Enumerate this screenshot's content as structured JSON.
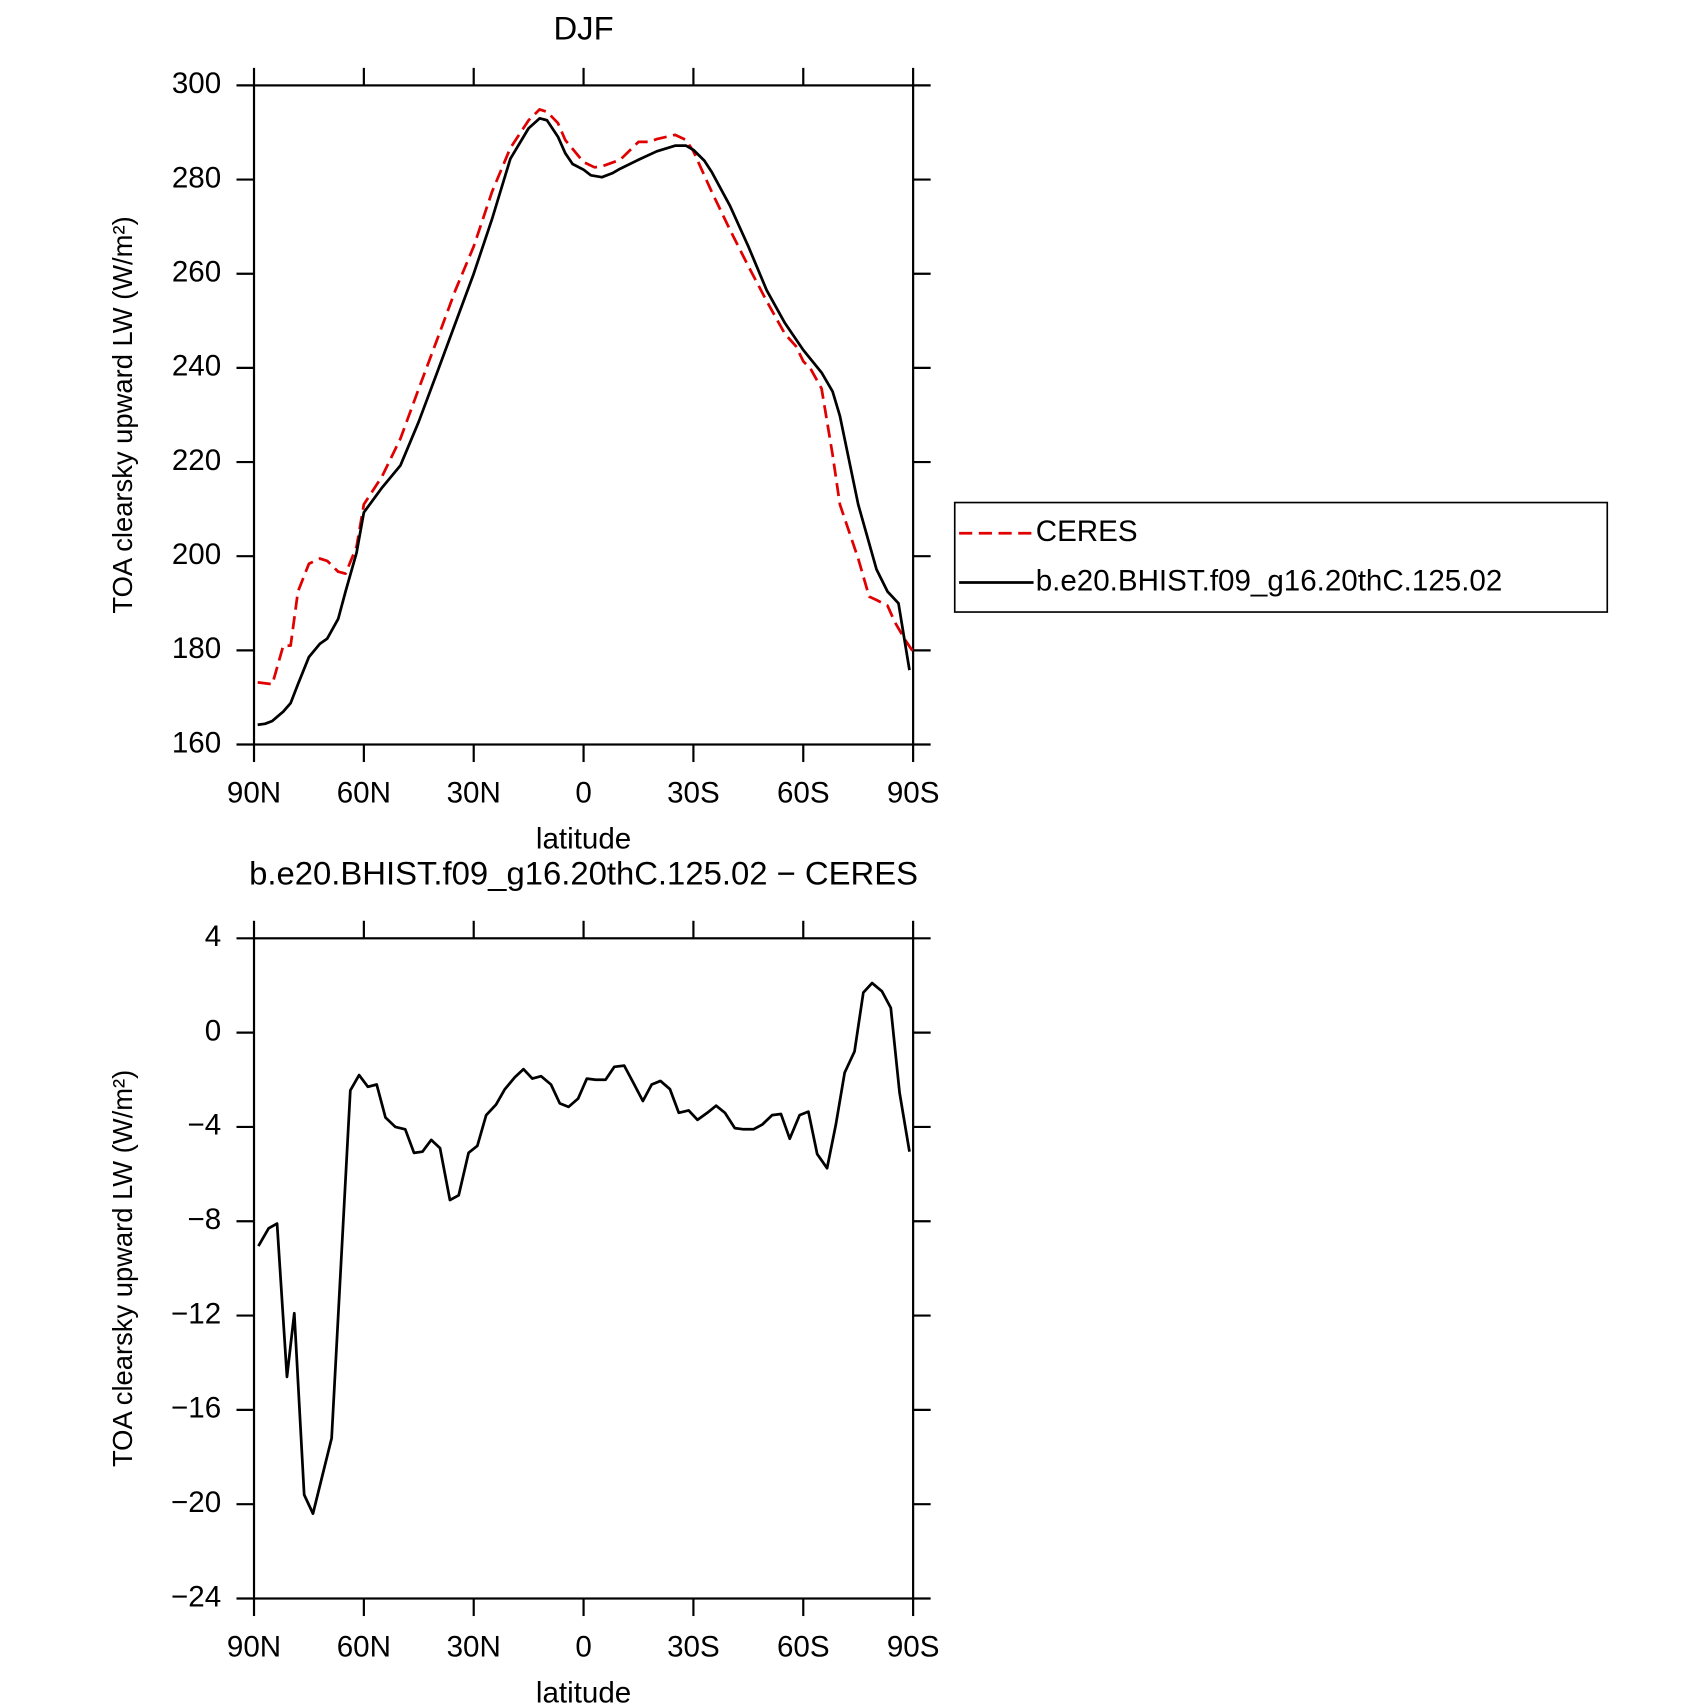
{
  "chart_data": [
    {
      "type": "line",
      "title": "DJF",
      "xlabel": "latitude",
      "ylabel": "TOA clearsky upward LW (W/m²)",
      "xlim": [
        90,
        -90
      ],
      "xticks": [
        {
          "value": 90,
          "label": "90N"
        },
        {
          "value": 60,
          "label": "60N"
        },
        {
          "value": 30,
          "label": "30N"
        },
        0,
        {
          "value": -30,
          "label": "30S"
        },
        {
          "value": -60,
          "label": "60S"
        },
        {
          "value": -90,
          "label": "90S"
        }
      ],
      "ylim": [
        160,
        300
      ],
      "yticks": [
        160,
        180,
        200,
        220,
        240,
        260,
        280,
        300
      ],
      "legend": "right",
      "series": [
        {
          "name": "CERES",
          "color": "#e00000",
          "dash": true,
          "x": [
            89,
            85,
            82,
            80,
            78,
            75,
            72,
            70,
            67,
            65,
            62,
            60,
            55,
            50,
            45,
            40,
            35,
            30,
            25,
            20,
            15,
            12,
            10,
            7,
            5,
            0,
            -3,
            -5,
            -10,
            -15,
            -18,
            -20,
            -25,
            -28,
            -30,
            -35,
            -40,
            -45,
            -50,
            -55,
            -58,
            -60,
            -62,
            -65,
            -68,
            -70,
            -75,
            -78,
            -80,
            -83,
            -85,
            -88,
            -90
          ],
          "values": [
            173.2,
            172.8,
            181,
            181,
            192.5,
            198.4,
            199.5,
            199,
            196.7,
            196.3,
            202,
            211,
            217,
            225,
            235.6,
            246,
            256.5,
            265.8,
            277.4,
            286.7,
            292.6,
            294.9,
            294.4,
            292,
            288.4,
            283.7,
            282.6,
            282.8,
            284.2,
            288,
            288,
            288.6,
            289.5,
            288.4,
            286,
            277.4,
            269.3,
            261.6,
            254.2,
            247.2,
            244.6,
            241.4,
            239.8,
            235.6,
            221.6,
            211,
            199.5,
            191.4,
            190.7,
            189.5,
            186,
            182,
            179.7
          ]
        },
        {
          "name": "b.e20.BHIST.f09_g16.20thC.125.02",
          "color": "#000000",
          "dash": false,
          "x": [
            89,
            87,
            85,
            82,
            80,
            78,
            75,
            72,
            70,
            67,
            65,
            62,
            60,
            55,
            50,
            45,
            40,
            35,
            30,
            25,
            20,
            15,
            12,
            10,
            7,
            5,
            3,
            0,
            -2,
            -5,
            -8,
            -10,
            -15,
            -20,
            -25,
            -28,
            -30,
            -33,
            -35,
            -40,
            -45,
            -50,
            -55,
            -60,
            -65,
            -68,
            -70,
            -75,
            -80,
            -83,
            -86,
            -89
          ],
          "values": [
            164.2,
            164.4,
            165,
            167,
            168.8,
            172.8,
            178.6,
            181.4,
            182.5,
            186.7,
            192.5,
            200.7,
            209.3,
            214.6,
            219.3,
            228.6,
            239,
            249.5,
            260,
            271.6,
            284.4,
            290.9,
            293,
            292.6,
            289.1,
            285.6,
            283.3,
            282.1,
            280.9,
            280.5,
            281.4,
            282.3,
            284.2,
            286,
            287.2,
            287.2,
            286.3,
            284,
            281.6,
            274.4,
            265.8,
            256.5,
            249.5,
            243.8,
            239,
            235,
            229.8,
            211,
            197.2,
            192.5,
            190,
            175.8
          ]
        }
      ]
    },
    {
      "type": "line",
      "title": "b.e20.BHIST.f09_g16.20thC.125.02 − CERES",
      "xlabel": "latitude",
      "ylabel": "TOA clearsky upward LW (W/m²)",
      "xlim": [
        90,
        -90
      ],
      "xticks": [
        {
          "value": 90,
          "label": "90N"
        },
        {
          "value": 60,
          "label": "60N"
        },
        {
          "value": 30,
          "label": "30N"
        },
        0,
        {
          "value": -30,
          "label": "30S"
        },
        {
          "value": -60,
          "label": "60S"
        },
        {
          "value": -90,
          "label": "90S"
        }
      ],
      "ylim": [
        -24,
        4
      ],
      "yticks": [
        {
          "value": -24,
          "label": "−24"
        },
        {
          "value": -20,
          "label": "−20"
        },
        {
          "value": -16,
          "label": "−16"
        },
        {
          "value": -12,
          "label": "−12"
        },
        {
          "value": -8,
          "label": "−8"
        },
        {
          "value": -4,
          "label": "−4"
        },
        0,
        4
      ],
      "series": [
        {
          "color": "#000000",
          "dash": false,
          "x": [
            88.8,
            86,
            83.7,
            81,
            79,
            76.3,
            73.9,
            68.8,
            63.7,
            61.3,
            58.9,
            56.5,
            54.1,
            51.4,
            48.7,
            46.3,
            44,
            41.6,
            39.2,
            36.5,
            34.1,
            31.4,
            29,
            26.6,
            23.9,
            21.5,
            18.8,
            16.4,
            14,
            11.6,
            8.9,
            6.5,
            4.1,
            1.5,
            -0.9,
            -3.3,
            -6,
            -8.4,
            -11.1,
            -13.5,
            -16.2,
            -18.6,
            -21,
            -23.6,
            -26,
            -28.7,
            -31.1,
            -33.8,
            -36.2,
            -38.6,
            -41.3,
            -43.7,
            -46.4,
            -48.8,
            -51.5,
            -53.9,
            -56.3,
            -59,
            -61.4,
            -63.8,
            -66.5,
            -68.9,
            -71.3,
            -74,
            -76.4,
            -78.8,
            -81.5,
            -83.9,
            -86.3,
            -89
          ],
          "values": [
            -9.05,
            -8.3,
            -8.1,
            -14.6,
            -11.9,
            -19.6,
            -20.4,
            -17.2,
            -2.45,
            -1.8,
            -2.3,
            -2.2,
            -3.6,
            -4.0,
            -4.1,
            -5.1,
            -5.05,
            -4.55,
            -4.9,
            -7.1,
            -6.9,
            -5.1,
            -4.8,
            -3.5,
            -3.05,
            -2.4,
            -1.9,
            -1.55,
            -1.95,
            -1.85,
            -2.2,
            -3.0,
            -3.15,
            -2.8,
            -1.95,
            -2.0,
            -2.0,
            -1.45,
            -1.4,
            -2.1,
            -2.9,
            -2.2,
            -2.05,
            -2.4,
            -3.4,
            -3.3,
            -3.7,
            -3.4,
            -3.1,
            -3.4,
            -4.05,
            -4.1,
            -4.1,
            -3.9,
            -3.5,
            -3.45,
            -4.5,
            -3.5,
            -3.35,
            -5.15,
            -5.75,
            -3.9,
            -1.7,
            -0.8,
            1.7,
            2.1,
            1.75,
            1.05,
            -2.55,
            -5.05
          ]
        }
      ]
    }
  ]
}
